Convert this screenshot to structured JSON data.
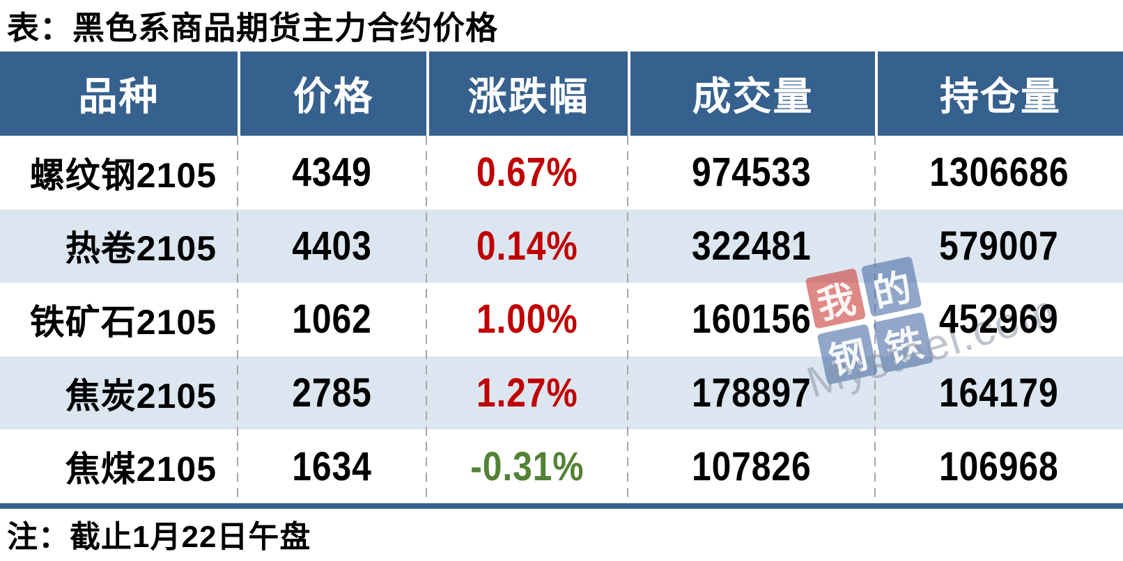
{
  "title": "表：黑色系商品期货主力合约价格",
  "note": "注：截止1月22日午盘",
  "colors": {
    "header_bg": "#36618E",
    "header_text": "#FFFFFF",
    "row_stripe": "#DCE6F1",
    "up_change": "#C00000",
    "down_change": "#538235",
    "bottom_border": "#36618E",
    "column_separator": "#A6A6A6",
    "watermark_red_square": "#C93B35",
    "watermark_blue_square": "#486AA5"
  },
  "watermark": {
    "squares": [
      {
        "char": "我",
        "bg": "red"
      },
      {
        "char": "的",
        "bg": "blue"
      },
      {
        "char": "钢",
        "bg": "blue"
      },
      {
        "char": "铁",
        "bg": "blue"
      }
    ],
    "text": "Mysteel.com"
  },
  "chart_data": {
    "type": "table",
    "title": "表：黑色系商品期货主力合约价格",
    "columns": [
      "品种",
      "价格",
      "涨跌幅",
      "成交量",
      "持仓量"
    ],
    "rows": [
      {
        "variety": "螺纹钢2105",
        "price": "4349",
        "change": "0.67%",
        "change_dir": "up",
        "volume": "974533",
        "open_interest": "1306686"
      },
      {
        "variety": "热卷2105",
        "price": "4403",
        "change": "0.14%",
        "change_dir": "up",
        "volume": "322481",
        "open_interest": "579007"
      },
      {
        "variety": "铁矿石2105",
        "price": "1062",
        "change": "1.00%",
        "change_dir": "up",
        "volume": "160156",
        "open_interest": "452969"
      },
      {
        "variety": "焦炭2105",
        "price": "2785",
        "change": "1.27%",
        "change_dir": "up",
        "volume": "178897",
        "open_interest": "164179"
      },
      {
        "variety": "焦煤2105",
        "price": "1634",
        "change": "-0.31%",
        "change_dir": "down",
        "volume": "107826",
        "open_interest": "106968"
      }
    ],
    "note": "注：截止1月22日午盘"
  }
}
